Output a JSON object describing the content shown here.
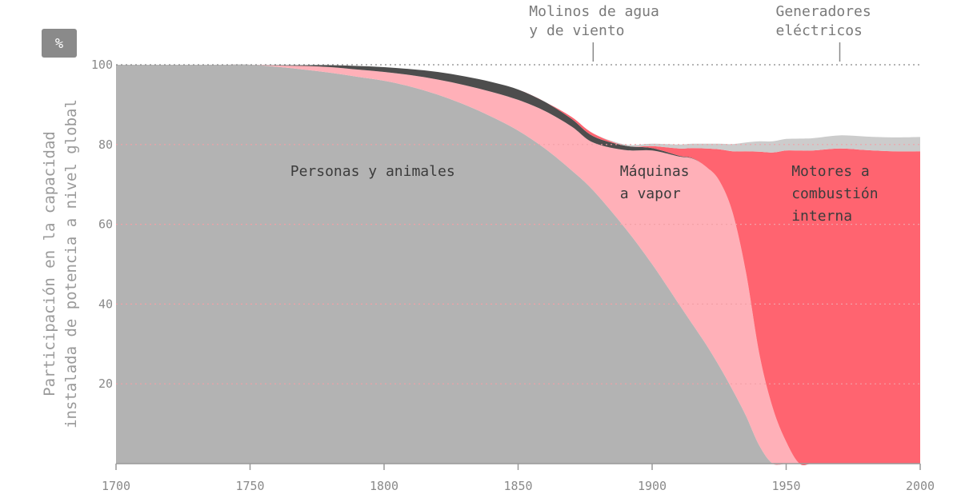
{
  "chart_data": {
    "type": "area",
    "stacked": true,
    "normalized_percent": true,
    "unit_badge": "%",
    "ylabel": "Participación en la capacidad instalada de potencia a nivel global",
    "ylabel_lines": [
      "Participación en la capacidad",
      "instalada de potencia a nivel global"
    ],
    "xlim": [
      1700,
      2000
    ],
    "ylim": [
      0,
      100
    ],
    "x_ticks": [
      1700,
      1750,
      1800,
      1850,
      1900,
      1950,
      2000
    ],
    "y_ticks": [
      20,
      40,
      60,
      80,
      100
    ],
    "grid": "dotted horizontal lines drawn over the colored areas",
    "x": [
      1700,
      1720,
      1740,
      1750,
      1760,
      1770,
      1780,
      1790,
      1800,
      1810,
      1820,
      1830,
      1840,
      1850,
      1860,
      1870,
      1878,
      1890,
      1900,
      1910,
      1915,
      1920,
      1925,
      1930,
      1935,
      1940,
      1945,
      1950,
      1955,
      1960,
      1970,
      1980,
      1990,
      2000
    ],
    "series": [
      {
        "name": "Personas y animales",
        "color": "#b3b3b3",
        "values": [
          100,
          100,
          100,
          100,
          99.5,
          98.8,
          98,
          97,
          96,
          94.5,
          92.5,
          90,
          87,
          83.5,
          79,
          73.5,
          68.5,
          59,
          50,
          40,
          35,
          30,
          24.5,
          18.5,
          12,
          4.5,
          0,
          -2,
          -4,
          -5,
          -6.5,
          -7.5,
          -7.9,
          -8
        ]
      },
      {
        "name": "Máquinas a vapor",
        "color": "#ffb0b8",
        "values": [
          0,
          0,
          0,
          0,
          0.3,
          0.9,
          1.4,
          1.8,
          2.2,
          2.9,
          3.8,
          4.9,
          6.2,
          7.7,
          9.4,
          11,
          12,
          19.6,
          28.5,
          37,
          41.5,
          44.5,
          46.5,
          44.5,
          36,
          23,
          14,
          7.5,
          4,
          0,
          0,
          0,
          0,
          0
        ]
      },
      {
        "name": "Molinos de agua y de viento",
        "color": "#4d4d4d",
        "values": [
          0,
          0,
          0,
          0,
          0.1,
          0.2,
          0.5,
          0.9,
          1.2,
          1.5,
          1.9,
          2.2,
          2.5,
          2.6,
          2.3,
          1.9,
          1.6,
          1.1,
          0.6,
          0.2,
          0.1,
          0,
          0,
          0,
          0,
          0,
          0,
          0,
          0,
          0,
          0,
          0,
          0,
          0
        ]
      },
      {
        "name": "Motores a combustión interna",
        "color": "#ff6470",
        "values": [
          0,
          0,
          0,
          0,
          0,
          0,
          0,
          0,
          0,
          0,
          0,
          0,
          0,
          0,
          0,
          0.5,
          0.7,
          0,
          0.5,
          1.8,
          2.5,
          4.5,
          7.8,
          15.3,
          30.3,
          50.7,
          64,
          73,
          78.5,
          83.5,
          85.5,
          86.1,
          86.2,
          86.3
        ]
      },
      {
        "name": "Generadores eléctricos",
        "color": "#cccccc",
        "values": [
          0,
          0,
          0,
          0,
          0,
          0,
          0,
          0,
          0,
          0,
          0,
          0,
          0,
          0,
          0,
          0,
          0,
          0.3,
          0.6,
          1.0,
          1.1,
          1.2,
          1.4,
          1.8,
          2.2,
          2.6,
          2.8,
          2.9,
          3.0,
          3.1,
          3.3,
          3.4,
          3.5,
          3.6
        ]
      }
    ],
    "annotations": [
      {
        "lines": [
          "Personas y animales"
        ],
        "x": 1810,
        "y": 73
      },
      {
        "lines": [
          "Máquinas",
          "a vapor"
        ],
        "x": 1888,
        "y": 73
      },
      {
        "lines": [
          "Motores a",
          "combustión",
          "interna"
        ],
        "x": 1952,
        "y": 73
      },
      {
        "lines": [
          "Molinos de agua",
          "y de viento"
        ],
        "x": 1878,
        "callout": true
      },
      {
        "lines": [
          "Generadores",
          "eléctricos"
        ],
        "x": 1970,
        "callout": true
      }
    ]
  }
}
